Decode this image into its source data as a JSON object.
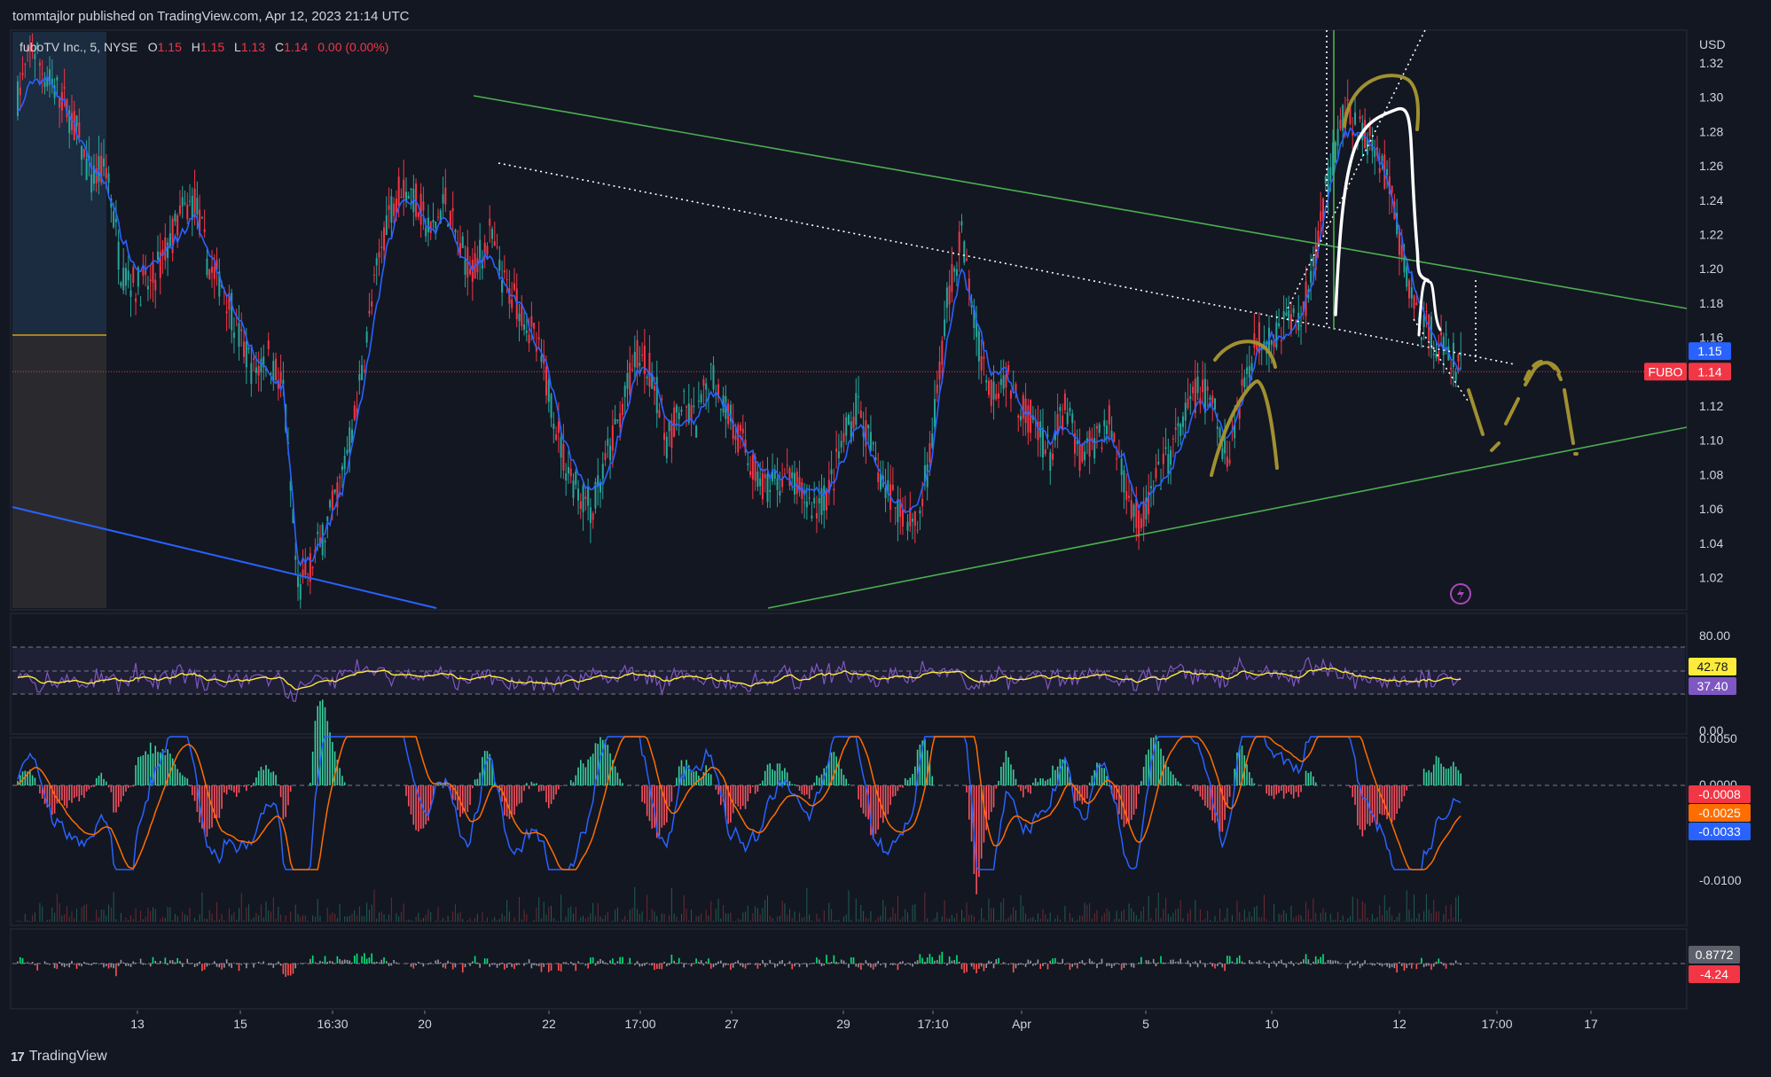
{
  "header": {
    "publisher": "tommtajlor published on TradingView.com, Apr 12, 2023 21:14 UTC"
  },
  "legend": {
    "symbol": "fuboTV Inc., 5, NYSE",
    "open_key": "O",
    "open": "1.15",
    "high_key": "H",
    "high": "1.15",
    "low_key": "L",
    "low": "1.13",
    "close_key": "C",
    "close": "1.14",
    "change": "0.00 (0.00%)"
  },
  "footer": {
    "brand": "TradingView",
    "logo": "17"
  },
  "colors": {
    "background": "#131722",
    "up": "#26a69a",
    "down": "#f23645",
    "ma": "#2962ff",
    "trend": "#4caf50",
    "rsi": "#7e57c2",
    "rsi_ma": "#ffeb3b",
    "annotation": "#a09030",
    "volume_up": "#3ad0a0",
    "volume_down": "#f7525f"
  },
  "chart_data": [
    {
      "type": "line",
      "panel": "price",
      "currency": "USD",
      "symbol_tag": "FUBO",
      "x_ticks": [
        "13",
        "15",
        "16:30",
        "20",
        "22",
        "17:00",
        "27",
        "29",
        "17:10",
        "Apr",
        "5",
        "10",
        "12",
        "17:00",
        "17"
      ],
      "y_ticks": [
        "1.32",
        "1.30",
        "1.28",
        "1.26",
        "1.24",
        "1.22",
        "1.20",
        "1.18",
        "1.16",
        "1.14",
        "1.12",
        "1.10",
        "1.08",
        "1.06",
        "1.04",
        "1.02"
      ],
      "ylim": [
        1.0,
        1.335
      ],
      "y_ticks_shown": [
        "1.32",
        "1.30",
        "1.28",
        "1.26",
        "1.24",
        "1.22",
        "1.20",
        "1.18",
        "1.16",
        "1.12",
        "1.10",
        "1.08",
        "1.06",
        "1.04",
        "1.02"
      ],
      "price_badges": [
        {
          "label": "1.15",
          "value": 1.152,
          "color": "#2962ff"
        },
        {
          "label": "1.14",
          "value": 1.14,
          "color": "#f23645"
        }
      ],
      "close_series": [
        1.3,
        1.33,
        1.31,
        1.3,
        1.28,
        1.25,
        1.26,
        1.2,
        1.19,
        1.19,
        1.21,
        1.23,
        1.24,
        1.2,
        1.19,
        1.16,
        1.14,
        1.15,
        1.13,
        1.01,
        1.03,
        1.05,
        1.08,
        1.12,
        1.18,
        1.23,
        1.25,
        1.24,
        1.22,
        1.24,
        1.21,
        1.2,
        1.22,
        1.19,
        1.18,
        1.16,
        1.13,
        1.09,
        1.07,
        1.06,
        1.09,
        1.12,
        1.15,
        1.14,
        1.1,
        1.12,
        1.11,
        1.14,
        1.12,
        1.1,
        1.08,
        1.07,
        1.08,
        1.07,
        1.06,
        1.07,
        1.1,
        1.12,
        1.09,
        1.07,
        1.06,
        1.05,
        1.1,
        1.18,
        1.22,
        1.16,
        1.13,
        1.14,
        1.12,
        1.11,
        1.09,
        1.12,
        1.09,
        1.1,
        1.11,
        1.08,
        1.05,
        1.07,
        1.09,
        1.11,
        1.13,
        1.12,
        1.09,
        1.13,
        1.16,
        1.16,
        1.17,
        1.17,
        1.21,
        1.26,
        1.29,
        1.28,
        1.27,
        1.25,
        1.2,
        1.17,
        1.16,
        1.15,
        1.14
      ],
      "ma_series": [
        1.29,
        1.31,
        1.31,
        1.3,
        1.28,
        1.26,
        1.25,
        1.22,
        1.2,
        1.2,
        1.21,
        1.22,
        1.23,
        1.21,
        1.19,
        1.17,
        1.15,
        1.14,
        1.13,
        1.03,
        1.03,
        1.05,
        1.07,
        1.11,
        1.16,
        1.21,
        1.24,
        1.24,
        1.22,
        1.23,
        1.21,
        1.2,
        1.21,
        1.19,
        1.18,
        1.16,
        1.14,
        1.1,
        1.08,
        1.07,
        1.08,
        1.11,
        1.14,
        1.14,
        1.11,
        1.11,
        1.11,
        1.13,
        1.12,
        1.1,
        1.09,
        1.08,
        1.08,
        1.07,
        1.07,
        1.07,
        1.09,
        1.11,
        1.09,
        1.07,
        1.06,
        1.06,
        1.09,
        1.16,
        1.2,
        1.17,
        1.14,
        1.14,
        1.12,
        1.11,
        1.1,
        1.11,
        1.1,
        1.1,
        1.1,
        1.09,
        1.06,
        1.07,
        1.08,
        1.1,
        1.12,
        1.12,
        1.1,
        1.12,
        1.15,
        1.16,
        1.16,
        1.17,
        1.2,
        1.25,
        1.28,
        1.28,
        1.27,
        1.25,
        1.21,
        1.18,
        1.16,
        1.15,
        1.14
      ]
    },
    {
      "type": "line",
      "panel": "rsi",
      "y_ticks": [
        "80.00",
        "0.00"
      ],
      "ylim": [
        0,
        100
      ],
      "badges": [
        {
          "label": "42.78",
          "color": "#ffeb3b",
          "text_color": "#131722"
        },
        {
          "label": "37.40",
          "color": "#7e57c2",
          "text_color": "#ffffff"
        }
      ]
    },
    {
      "type": "bar",
      "panel": "macd",
      "y_ticks": [
        "0.0050",
        "0.0000",
        "-0.0100"
      ],
      "badges": [
        {
          "label": "-0.0008",
          "color": "#f23645",
          "text_color": "#ffffff"
        },
        {
          "label": "-0.0025",
          "color": "#ff6d00",
          "text_color": "#ffffff"
        },
        {
          "label": "-0.0033",
          "color": "#2962ff",
          "text_color": "#ffffff"
        }
      ]
    },
    {
      "type": "area",
      "panel": "oscillator",
      "badges": [
        {
          "label": "0.8772",
          "color": "#5d606b",
          "text_color": "#ffffff"
        },
        {
          "label": "-4.24",
          "color": "#f23645",
          "text_color": "#ffffff"
        }
      ]
    }
  ]
}
